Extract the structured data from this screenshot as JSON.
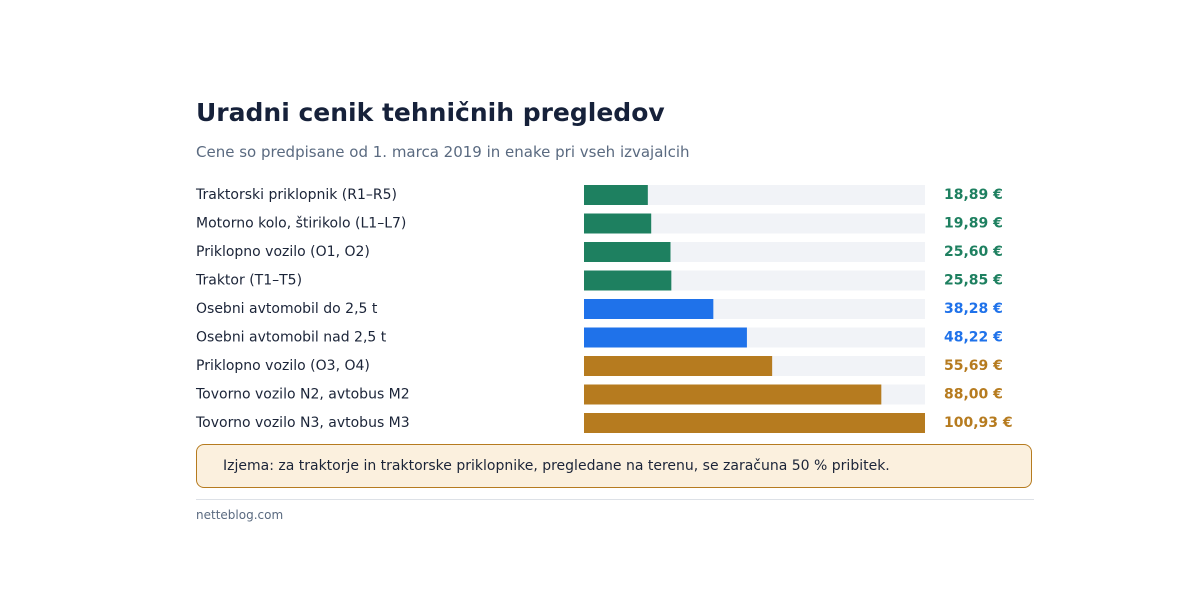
{
  "header": {
    "title": "Uradni cenik tehničnih pregledov",
    "subtitle": "Cene so predpisane od 1. marca 2019 in enake pri vseh izvajalcih"
  },
  "chart_data": {
    "type": "bar",
    "orientation": "horizontal",
    "xlim": [
      0,
      100.93
    ],
    "grid": false,
    "legend": "none",
    "categories": [
      "Traktorski priklopnik (R1–R5)",
      "Motorno kolo, štirikolo (L1–L7)",
      "Priklopno vozilo (O1, O2)",
      "Traktor (T1–T5)",
      "Osebni avtomobil do 2,5 t",
      "Osebni avtomobil nad 2,5 t",
      "Priklopno vozilo (O3, O4)",
      "Tovorno vozilo N2, avtobus M2",
      "Tovorno vozilo N3, avtobus M3"
    ],
    "values": [
      18.89,
      19.89,
      25.6,
      25.85,
      38.28,
      48.22,
      55.69,
      88.0,
      100.93
    ],
    "value_labels": [
      "18,89 €",
      "19,89 €",
      "25,60 €",
      "25,85 €",
      "38,28 €",
      "48,22 €",
      "55,69 €",
      "88,00 €",
      "100,93 €"
    ],
    "bar_colors": [
      "#1e8060",
      "#1e8060",
      "#1e8060",
      "#1e8060",
      "#1f72ea",
      "#1f72ea",
      "#b67b1f",
      "#b67b1f",
      "#b67b1f"
    ],
    "track_color": "#f1f3f7"
  },
  "note": {
    "text": "Izjema: za traktorje in traktorske priklopnike, pregledane na terenu, se zaračuna 50 % pribitek."
  },
  "footer": {
    "source": "netteblog.com"
  }
}
